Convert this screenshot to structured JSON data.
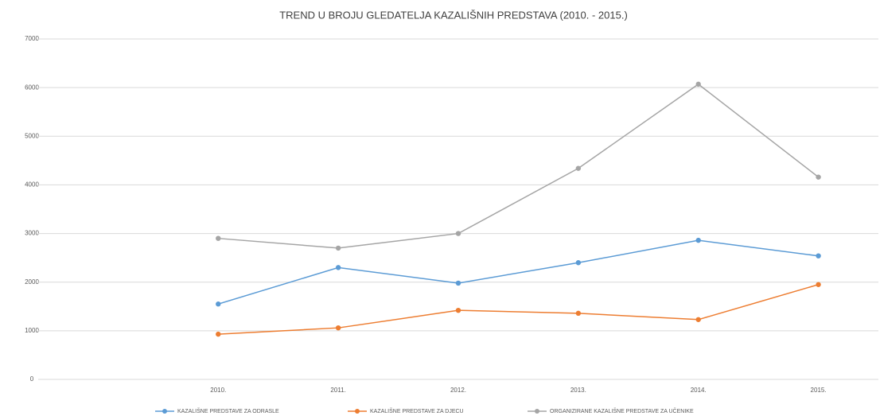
{
  "chart_data": {
    "type": "line",
    "title": "TREND U BROJU GLEDATELJA KAZALIŠNIH PREDSTAVA (2010. - 2015.)",
    "categories": [
      null,
      "2010.",
      "2011.",
      "2012.",
      "2013.",
      "2014.",
      "2015."
    ],
    "series": [
      {
        "name": "KAZALIŠNE PREDSTAVE ZA ODRASLE",
        "color": "#5b9bd5",
        "values": [
          null,
          1550,
          2300,
          1980,
          2400,
          2860,
          2540
        ]
      },
      {
        "name": "KAZALIŠNE PREDSTAVE ZA DJECU",
        "color": "#ed7d31",
        "values": [
          null,
          930,
          1060,
          1420,
          1360,
          1230,
          1950
        ]
      },
      {
        "name": "ORGANIZIRANE KAZALIŠNE PREDSTAVE ZA UČENIKE",
        "color": "#a5a5a5",
        "values": [
          null,
          2900,
          2700,
          3000,
          4340,
          6070,
          4160
        ]
      }
    ],
    "ylim": [
      0,
      7000
    ],
    "yticks": [
      0,
      1000,
      2000,
      3000,
      4000,
      5000,
      6000,
      7000
    ],
    "grid": true,
    "legend": "bottom"
  }
}
